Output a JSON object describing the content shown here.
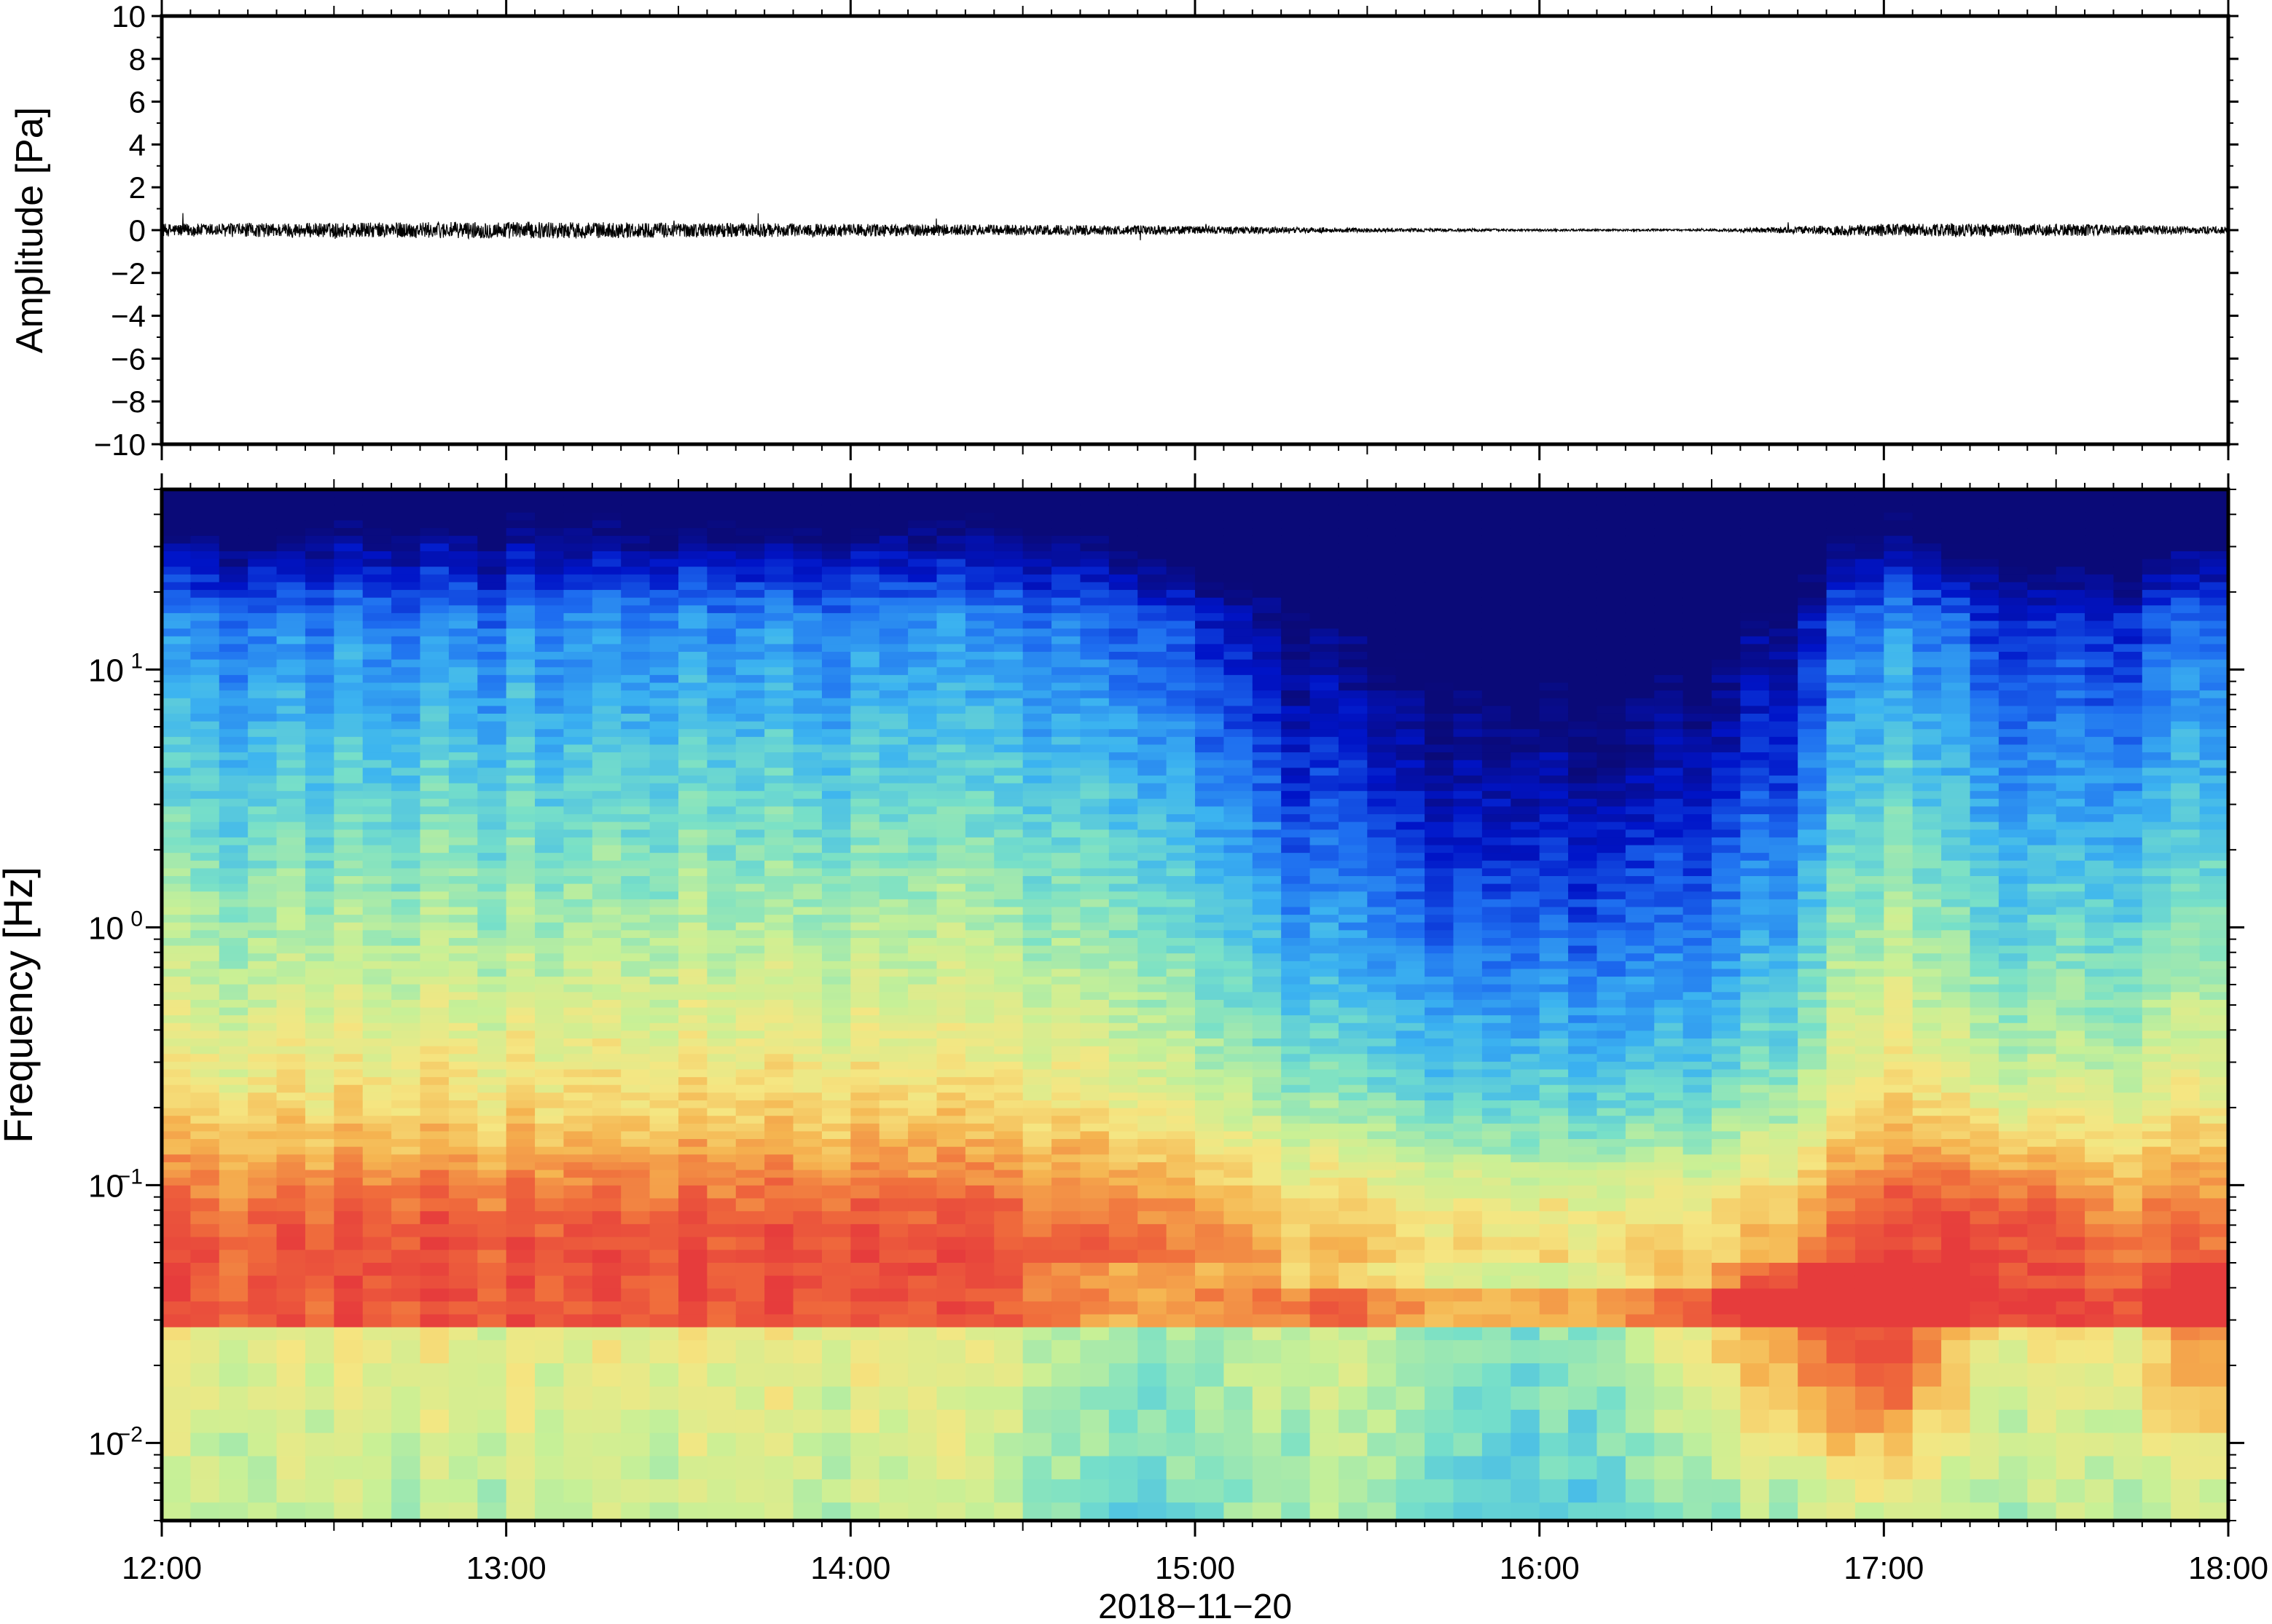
{
  "chart_data": [
    {
      "type": "line",
      "panel": "waveform",
      "ylabel": "Amplitude [Pa]",
      "ylim": [
        -10,
        10
      ],
      "y_ticks": [
        "10",
        "8",
        "6",
        "4",
        "2",
        "0",
        "−2",
        "−4",
        "−6",
        "−8",
        "−10"
      ],
      "y_tick_values": [
        10,
        8,
        6,
        4,
        2,
        0,
        -2,
        -4,
        -6,
        -8,
        -10
      ],
      "x_range_hours": [
        12,
        18
      ],
      "series": [
        {
          "segments_hours": [
            12.0,
            12.5,
            13.0,
            13.5,
            14.0,
            14.5,
            15.0,
            15.5,
            16.0,
            16.5,
            17.0,
            17.5,
            18.0
          ],
          "envelope_pa": [
            0.3,
            0.35,
            0.4,
            0.35,
            0.3,
            0.25,
            0.2,
            0.1,
            0.05,
            0.05,
            0.3,
            0.3,
            0.15
          ]
        }
      ],
      "grid": false
    },
    {
      "type": "heatmap",
      "panel": "spectrogram",
      "ylabel": "Frequency [Hz]",
      "yscale": "log",
      "ylim": [
        0.005,
        50
      ],
      "y_ticks": [
        {
          "value": 10,
          "base": "10",
          "exp": "1"
        },
        {
          "value": 1,
          "base": "10",
          "exp": "0"
        },
        {
          "value": 0.1,
          "base": "10",
          "exp": "−1"
        },
        {
          "value": 0.01,
          "base": "10",
          "exp": "−2"
        }
      ],
      "xlabel": "2018−11−20",
      "x_ticks": [
        "12:00",
        "13:00",
        "14:00",
        "15:00",
        "16:00",
        "17:00",
        "18:00"
      ],
      "x_range_hours": [
        12,
        18
      ],
      "colormap": [
        "#0a0a78",
        "#0014c8",
        "#1e6ef0",
        "#3cb4f0",
        "#78e0c8",
        "#c8f096",
        "#f5e682",
        "#f5b450",
        "#f06e3c",
        "#e63c3c"
      ],
      "grid": false
    }
  ]
}
